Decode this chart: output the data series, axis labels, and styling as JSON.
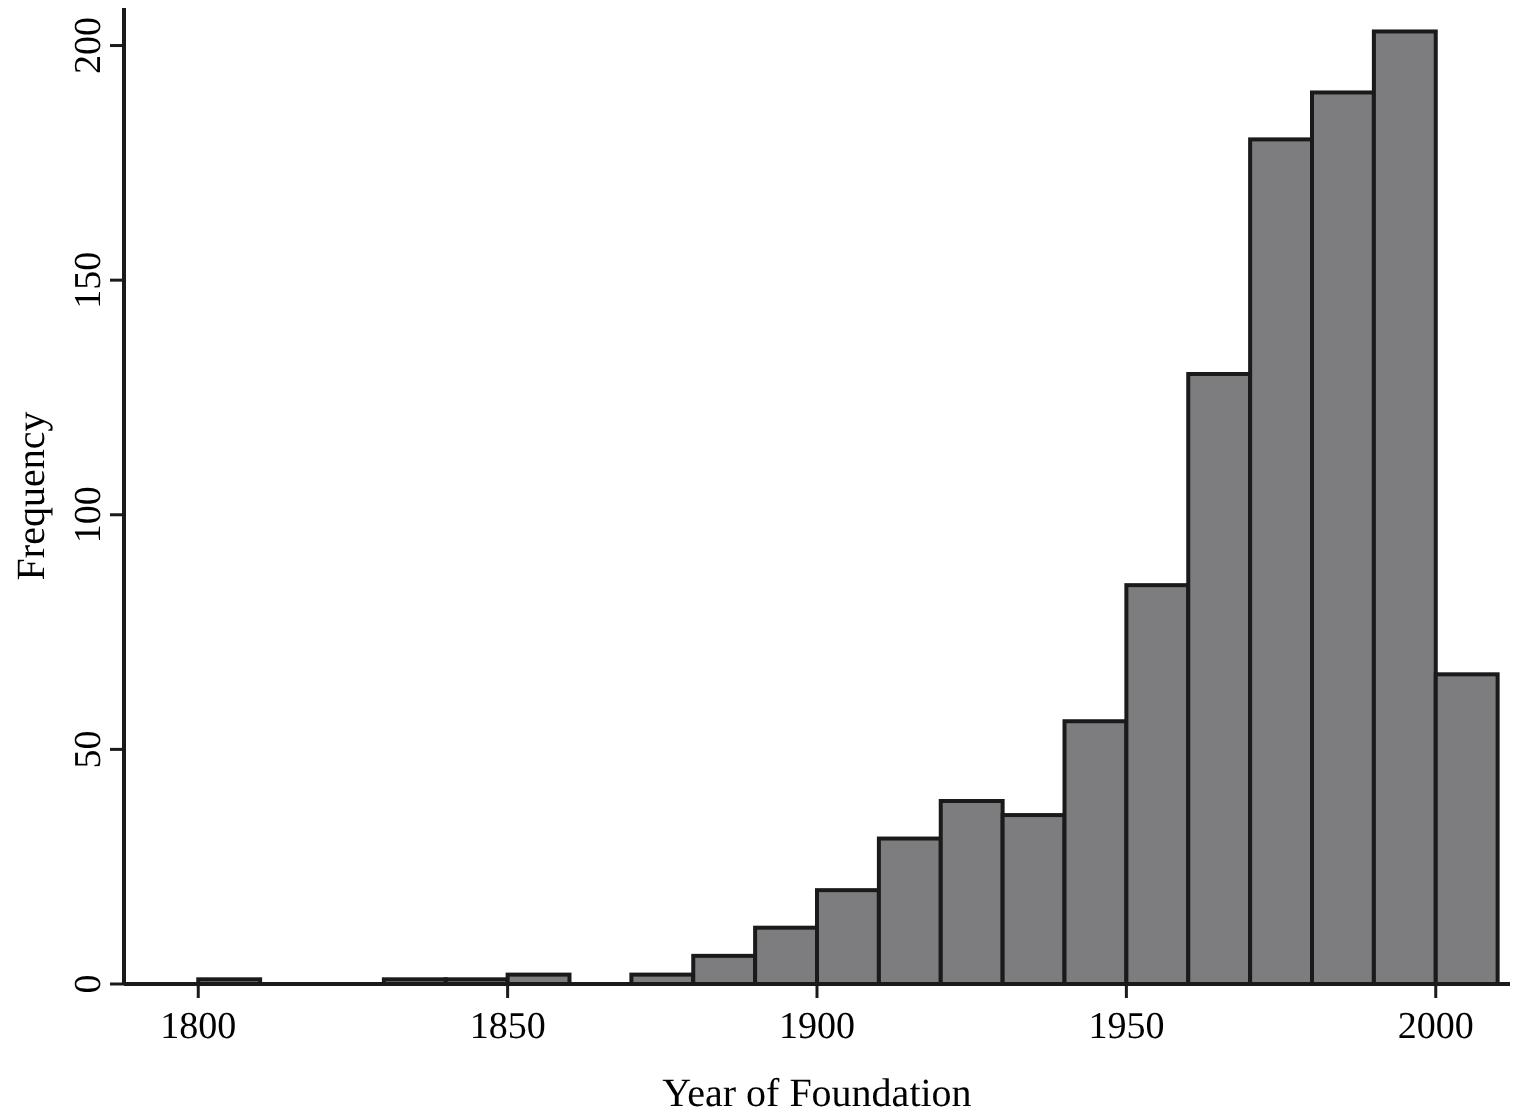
{
  "chart_data": {
    "type": "histogram",
    "xlabel": "Year of Foundation",
    "ylabel": "Frequency",
    "bins": [
      1800,
      1810,
      1820,
      1830,
      1840,
      1850,
      1860,
      1870,
      1880,
      1890,
      1900,
      1910,
      1920,
      1930,
      1940,
      1950,
      1960,
      1970,
      1980,
      1990,
      2000,
      2010
    ],
    "values": [
      1,
      0,
      0,
      1,
      1,
      2,
      0,
      2,
      6,
      12,
      20,
      31,
      39,
      36,
      56,
      85,
      130,
      180,
      190,
      203,
      66
    ],
    "color": "#7d7d80",
    "xlim": [
      1788,
      2012
    ],
    "xticks": [
      1800,
      1850,
      1900,
      1950,
      2000
    ],
    "ylim": [
      0,
      208
    ],
    "yticks": [
      0,
      50,
      100,
      150,
      200
    ],
    "grid": false
  }
}
